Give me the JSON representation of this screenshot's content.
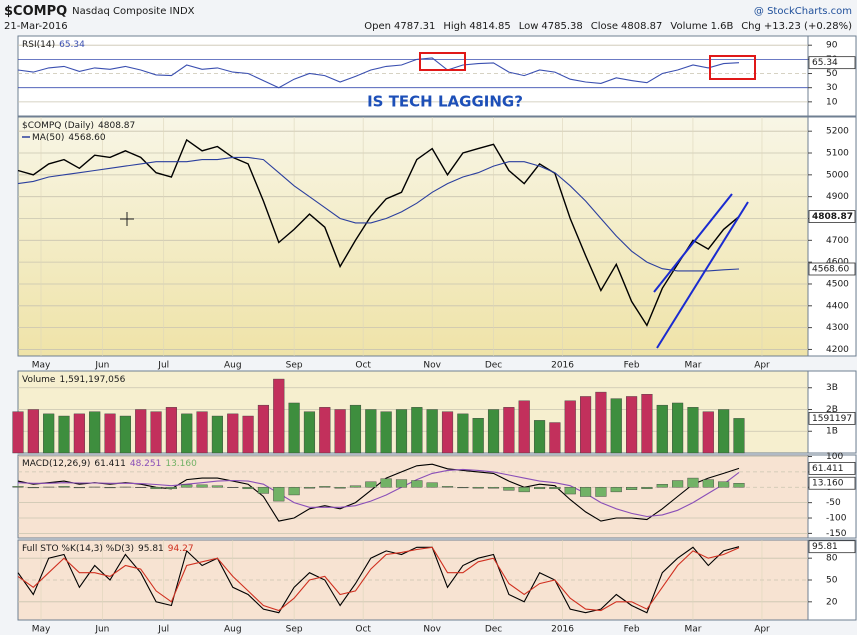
{
  "header": {
    "symbol": "$COMPQ",
    "name": "Nasdaq Composite INDX",
    "brand": "@ StockCharts.com",
    "date": "21-Mar-2016",
    "quote": [
      {
        "label": "Open",
        "value": 4787.31
      },
      {
        "label": "High",
        "value": 4814.85
      },
      {
        "label": "Low",
        "value": 4785.38
      },
      {
        "label": "Close",
        "value": 4808.87
      },
      {
        "label": "Volume",
        "value": "1.6B"
      },
      {
        "label": "Chg",
        "value": "+13.23 (+0.28%)"
      }
    ]
  },
  "chart_data": [
    {
      "type": "line",
      "title": "RSI(14)",
      "annotation": "IS TECH LAGGING?",
      "xlim": [
        0,
        51.5
      ],
      "ylim": [
        -10,
        103
      ],
      "yticks": [
        10,
        30,
        50,
        70,
        90
      ],
      "series": [
        {
          "color": "#3a4fb0",
          "values": [
            55,
            52,
            58,
            60,
            53,
            58,
            56,
            60,
            55,
            48,
            47,
            62,
            56,
            58,
            52,
            50,
            40,
            30,
            42,
            50,
            47,
            38,
            46,
            55,
            60,
            62,
            70,
            72,
            55,
            62,
            64,
            65,
            52,
            47,
            55,
            52,
            42,
            38,
            36,
            44,
            40,
            37,
            50,
            55,
            62,
            58,
            64,
            65.34
          ]
        }
      ]
    },
    {
      "type": "line",
      "title": "$COMPQ (Daily)",
      "xlim": [
        0,
        51.5
      ],
      "ylim": [
        4170,
        5265
      ],
      "yticks": [
        4200,
        4300,
        4400,
        4500,
        4600,
        4700,
        4800,
        4900,
        5000,
        5100,
        5200
      ],
      "xticks": [
        {
          "value": 1.5,
          "label": "May"
        },
        {
          "value": 5.5,
          "label": "Jun"
        },
        {
          "value": 9.5,
          "label": "Jul"
        },
        {
          "value": 14,
          "label": "Aug"
        },
        {
          "value": 18,
          "label": "Sep"
        },
        {
          "value": 22.5,
          "label": "Oct"
        },
        {
          "value": 27,
          "label": "Nov"
        },
        {
          "value": 31,
          "label": "Dec"
        },
        {
          "value": 35.5,
          "label": "2016"
        },
        {
          "value": 40,
          "label": "Feb"
        },
        {
          "value": 44,
          "label": "Mar"
        },
        {
          "value": 48.5,
          "label": "Apr"
        }
      ],
      "series": [
        {
          "color": "#000000",
          "values": [
            5020,
            5000,
            5050,
            5070,
            5030,
            5090,
            5080,
            5110,
            5080,
            5010,
            4990,
            5160,
            5110,
            5130,
            5080,
            5050,
            4880,
            4690,
            4750,
            4820,
            4760,
            4580,
            4700,
            4810,
            4890,
            4920,
            5070,
            5120,
            5000,
            5100,
            5120,
            5140,
            5020,
            4960,
            5050,
            5007,
            4800,
            4630,
            4470,
            4590,
            4420,
            4310,
            4480,
            4590,
            4700,
            4660,
            4750,
            4808.87
          ]
        },
        {
          "name": "MA(50)",
          "color": "#2b3f9e",
          "last_label": "4568.60",
          "values": [
            4960,
            4970,
            4990,
            5000,
            5010,
            5020,
            5030,
            5040,
            5050,
            5060,
            5060,
            5060,
            5070,
            5070,
            5080,
            5080,
            5070,
            5010,
            4950,
            4900,
            4850,
            4800,
            4780,
            4780,
            4800,
            4830,
            4870,
            4920,
            4960,
            4990,
            5010,
            5040,
            5060,
            5060,
            5040,
            5010,
            4950,
            4880,
            4800,
            4720,
            4650,
            4600,
            4570,
            4560,
            4560,
            4560,
            4565,
            4568.6
          ]
        }
      ]
    },
    {
      "type": "bar",
      "title": "Volume",
      "xlim": [
        0,
        51.5
      ],
      "ylim": [
        0,
        3.77
      ],
      "yticks": [
        {
          "value": 1,
          "label": "1B"
        },
        {
          "value": 2,
          "label": "2B"
        },
        {
          "value": 3,
          "label": "3B"
        }
      ],
      "series": [
        {
          "legend_label": "1,591,197,056",
          "axis_label": "1591197",
          "values": [
            1.9,
            2.0,
            1.8,
            1.7,
            1.8,
            1.9,
            1.8,
            1.7,
            2.0,
            1.9,
            2.1,
            1.8,
            1.9,
            1.7,
            1.8,
            1.7,
            2.2,
            3.4,
            2.3,
            1.9,
            2.1,
            2.0,
            2.2,
            2.0,
            1.9,
            2.0,
            2.1,
            2.0,
            1.9,
            1.8,
            1.6,
            2.0,
            2.1,
            2.4,
            1.5,
            1.4,
            2.4,
            2.6,
            2.8,
            2.5,
            2.6,
            2.7,
            2.2,
            2.3,
            2.1,
            1.9,
            2.0,
            1.591197056
          ],
          "colors": [
            "#c2305c",
            "#c2305c",
            "#3e8e3e",
            "#3e8e3e",
            "#c2305c",
            "#3e8e3e",
            "#c2305c",
            "#3e8e3e",
            "#c2305c",
            "#c2305c",
            "#c2305c",
            "#3e8e3e",
            "#c2305c",
            "#3e8e3e",
            "#c2305c",
            "#c2305c",
            "#c2305c",
            "#c2305c",
            "#3e8e3e",
            "#3e8e3e",
            "#c2305c",
            "#c2305c",
            "#3e8e3e",
            "#3e8e3e",
            "#3e8e3e",
            "#3e8e3e",
            "#3e8e3e",
            "#3e8e3e",
            "#c2305c",
            "#3e8e3e",
            "#3e8e3e",
            "#3e8e3e",
            "#c2305c",
            "#c2305c",
            "#3e8e3e",
            "#c2305c",
            "#c2305c",
            "#c2305c",
            "#c2305c",
            "#3e8e3e",
            "#c2305c",
            "#c2305c",
            "#3e8e3e",
            "#3e8e3e",
            "#3e8e3e",
            "#c2305c",
            "#3e8e3e",
            "#3e8e3e"
          ]
        }
      ]
    },
    {
      "type": "line",
      "title": "MACD(12,26,9)",
      "xlim": [
        0,
        51.5
      ],
      "ylim": [
        -165,
        105
      ],
      "yticks": [
        100,
        50,
        0,
        -50,
        -100,
        -150
      ],
      "series": [
        {
          "color": "#000000",
          "values": [
            20,
            10,
            15,
            20,
            10,
            15,
            10,
            15,
            10,
            0,
            -5,
            25,
            30,
            30,
            20,
            10,
            -30,
            -110,
            -100,
            -70,
            -60,
            -70,
            -50,
            -10,
            30,
            50,
            70,
            75,
            60,
            55,
            50,
            45,
            20,
            0,
            10,
            5,
            -40,
            -80,
            -110,
            -100,
            -100,
            -105,
            -70,
            -30,
            10,
            30,
            45,
            61.411
          ]
        },
        {
          "color": "#8a4fb8",
          "values": [
            15,
            13,
            13,
            15,
            14,
            14,
            13,
            13,
            12,
            9,
            5,
            10,
            15,
            20,
            22,
            20,
            10,
            -20,
            -50,
            -65,
            -65,
            -65,
            -60,
            -45,
            -25,
            0,
            25,
            45,
            55,
            58,
            55,
            50,
            40,
            30,
            20,
            15,
            5,
            -20,
            -50,
            -70,
            -85,
            -95,
            -90,
            -75,
            -50,
            -20,
            10,
            48.251
          ]
        },
        {
          "type": "bar",
          "color": "#72b266",
          "last_label": "13.160",
          "values": [
            3,
            -2,
            1,
            3,
            -2,
            1,
            -2,
            1,
            -1,
            -5,
            -5,
            8,
            8,
            5,
            -1,
            -5,
            -20,
            -45,
            -25,
            -3,
            3,
            -3,
            5,
            18,
            28,
            25,
            22,
            15,
            3,
            -2,
            -3,
            -3,
            -10,
            -15,
            -5,
            -5,
            -22,
            -30,
            -30,
            -15,
            -8,
            -5,
            10,
            22,
            30,
            25,
            18,
            13.16
          ]
        }
      ]
    },
    {
      "type": "line",
      "title": "Full STO %K(14,3) %D(3)",
      "xlim": [
        0,
        51.5
      ],
      "ylim": [
        -5,
        105
      ],
      "yticks": [
        20,
        50,
        80
      ],
      "xticks": [
        {
          "value": 1.5,
          "label": "May"
        },
        {
          "value": 5.5,
          "label": "Jun"
        },
        {
          "value": 9.5,
          "label": "Jul"
        },
        {
          "value": 14,
          "label": "Aug"
        },
        {
          "value": 18,
          "label": "Sep"
        },
        {
          "value": 22.5,
          "label": "Oct"
        },
        {
          "value": 27,
          "label": "Nov"
        },
        {
          "value": 31,
          "label": "Dec"
        },
        {
          "value": 35.5,
          "label": "2016"
        },
        {
          "value": 40,
          "label": "Feb"
        },
        {
          "value": 44,
          "label": "Mar"
        },
        {
          "value": 48.5,
          "label": "Apr"
        }
      ],
      "series": [
        {
          "color": "#000000",
          "values": [
            60,
            30,
            80,
            85,
            40,
            70,
            50,
            85,
            60,
            20,
            15,
            90,
            70,
            80,
            40,
            30,
            10,
            5,
            40,
            60,
            50,
            15,
            45,
            80,
            90,
            85,
            95,
            95,
            40,
            70,
            80,
            85,
            30,
            20,
            60,
            50,
            10,
            5,
            10,
            30,
            15,
            5,
            60,
            80,
            95,
            70,
            90,
            95.81
          ]
        },
        {
          "color": "#d03020",
          "values": [
            55,
            40,
            60,
            80,
            60,
            60,
            55,
            70,
            65,
            35,
            20,
            70,
            75,
            80,
            55,
            35,
            15,
            8,
            25,
            50,
            55,
            30,
            35,
            65,
            85,
            88,
            92,
            95,
            60,
            60,
            75,
            80,
            45,
            30,
            45,
            50,
            25,
            10,
            8,
            20,
            20,
            10,
            40,
            70,
            90,
            80,
            85,
            94.27
          ]
        }
      ]
    }
  ]
}
